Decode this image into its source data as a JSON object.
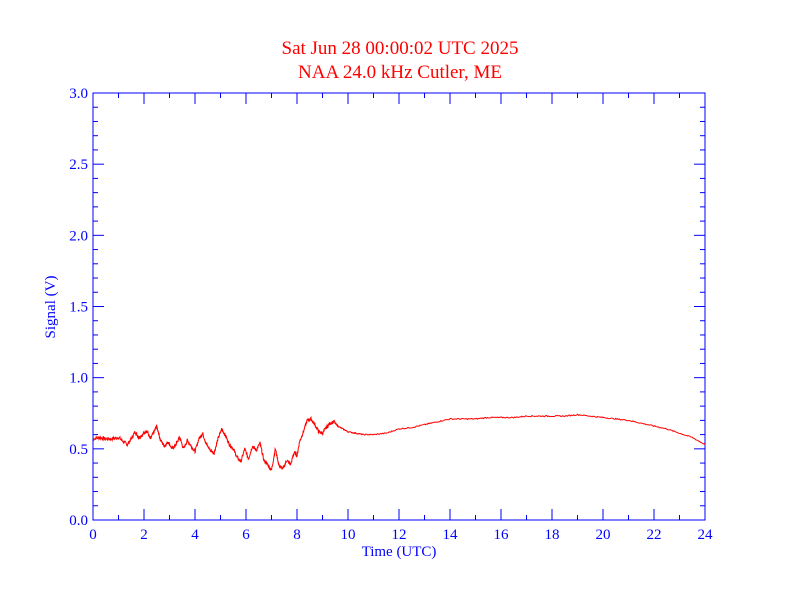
{
  "chart_data": {
    "type": "line",
    "title": "Sat Jun 28 00:00:02 UTC 2025",
    "subtitle": "NAA 24.0 kHz Cutler, ME",
    "xlabel": "Time (UTC)",
    "ylabel": "Signal (V)",
    "xlim": [
      0,
      24
    ],
    "ylim": [
      0,
      3.0
    ],
    "xticks": [
      0,
      2,
      4,
      6,
      8,
      10,
      12,
      14,
      16,
      18,
      20,
      22,
      24
    ],
    "xtick_labels": [
      "0",
      "2",
      "4",
      "6",
      "8",
      "10",
      "12",
      "14",
      "16",
      "18",
      "20",
      "22",
      "24"
    ],
    "yticks": [
      0,
      0.5,
      1.0,
      1.5,
      2.0,
      2.5,
      3.0
    ],
    "ytick_labels": [
      "0.0",
      "0.5",
      "1.0",
      "1.5",
      "2.0",
      "2.5",
      "3.0"
    ],
    "grid": false,
    "series": [
      {
        "x": [
          0,
          0.25,
          0.5,
          0.75,
          1.0,
          1.2,
          1.35,
          1.5,
          1.65,
          1.8,
          1.95,
          2.1,
          2.25,
          2.4,
          2.5,
          2.65,
          2.8,
          2.95,
          3.1,
          3.25,
          3.4,
          3.55,
          3.7,
          3.85,
          4.0,
          4.15,
          4.3,
          4.45,
          4.6,
          4.75,
          4.9,
          5.05,
          5.2,
          5.35,
          5.5,
          5.65,
          5.8,
          5.95,
          6.1,
          6.25,
          6.4,
          6.55,
          6.7,
          6.85,
          7.0,
          7.15,
          7.3,
          7.45,
          7.6,
          7.75,
          7.9,
          8.0,
          8.1,
          8.25,
          8.4,
          8.55,
          8.7,
          8.85,
          9.0,
          9.15,
          9.3,
          9.45,
          9.6,
          9.8,
          10.0,
          10.3,
          10.6,
          11.0,
          11.5,
          12.0,
          12.5,
          13.0,
          13.5,
          14.0,
          14.5,
          15.0,
          15.5,
          16.0,
          16.5,
          17.0,
          17.5,
          18.0,
          18.5,
          19.0,
          19.5,
          20.0,
          20.5,
          21.0,
          21.5,
          22.0,
          22.5,
          23.0,
          23.5,
          24.0
        ],
        "y": [
          0.57,
          0.58,
          0.57,
          0.57,
          0.58,
          0.55,
          0.53,
          0.57,
          0.62,
          0.58,
          0.6,
          0.63,
          0.57,
          0.62,
          0.66,
          0.56,
          0.52,
          0.55,
          0.5,
          0.53,
          0.58,
          0.5,
          0.56,
          0.52,
          0.48,
          0.57,
          0.61,
          0.53,
          0.49,
          0.47,
          0.57,
          0.64,
          0.59,
          0.53,
          0.5,
          0.44,
          0.41,
          0.5,
          0.43,
          0.52,
          0.49,
          0.54,
          0.42,
          0.39,
          0.35,
          0.5,
          0.38,
          0.36,
          0.42,
          0.39,
          0.48,
          0.45,
          0.55,
          0.62,
          0.7,
          0.71,
          0.67,
          0.62,
          0.61,
          0.65,
          0.68,
          0.69,
          0.66,
          0.64,
          0.62,
          0.61,
          0.6,
          0.6,
          0.61,
          0.64,
          0.65,
          0.67,
          0.69,
          0.71,
          0.71,
          0.71,
          0.72,
          0.72,
          0.72,
          0.73,
          0.73,
          0.73,
          0.73,
          0.74,
          0.73,
          0.72,
          0.71,
          0.7,
          0.68,
          0.66,
          0.64,
          0.61,
          0.58,
          0.53
        ]
      }
    ]
  },
  "colors": {
    "title": "#ff0000",
    "axes": "#0000ff",
    "series": "#ff0000",
    "background": "#ffffff"
  }
}
